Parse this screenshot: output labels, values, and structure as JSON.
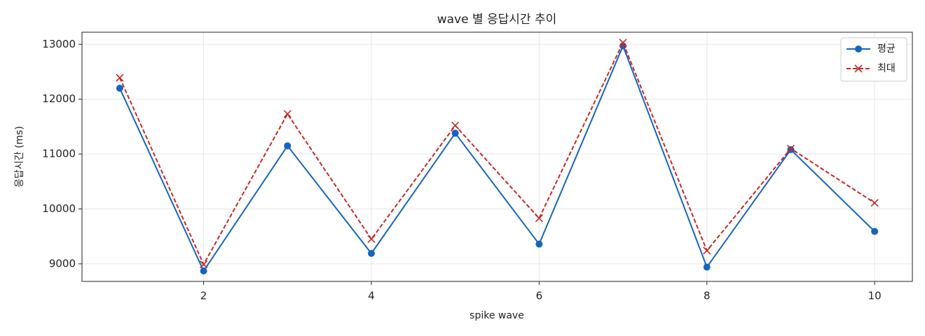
{
  "chart_data": {
    "type": "line",
    "title": "wave 별 응답시간 추이",
    "x_label": "spike wave",
    "y_label": "응답시간 (ms)",
    "x": [
      1,
      2,
      3,
      4,
      5,
      6,
      7,
      8,
      9,
      10
    ],
    "series": [
      {
        "name": "평균",
        "color": "#1565c0",
        "linestyle": "solid",
        "marker": "circle",
        "values": [
          12200,
          8870,
          11150,
          9190,
          11380,
          9360,
          12970,
          8940,
          11080,
          9590
        ]
      },
      {
        "name": "최대",
        "color": "#c62828",
        "linestyle": "dashed",
        "marker": "x",
        "values": [
          12390,
          8990,
          11730,
          9450,
          11520,
          9830,
          13030,
          9240,
          11100,
          10110
        ]
      }
    ],
    "xlim": [
      0.55,
      10.45
    ],
    "xticks": [
      2,
      4,
      6,
      8,
      10
    ],
    "ylim": [
      8680,
      13220
    ],
    "yticks": [
      9000,
      10000,
      11000,
      12000,
      13000
    ],
    "grid": true,
    "legend": "upper right"
  }
}
